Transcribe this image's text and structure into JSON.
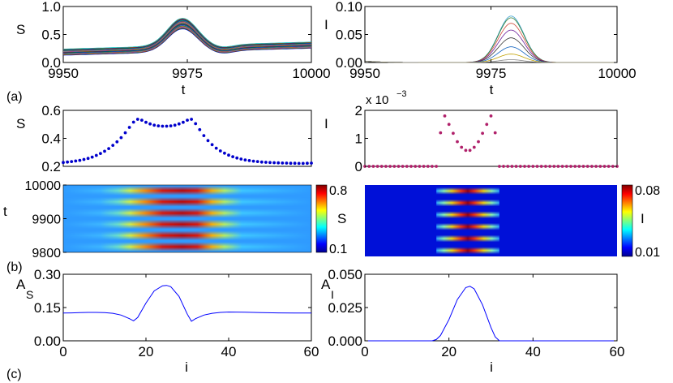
{
  "chart_data": [
    {
      "panel": "(a)",
      "type": "line",
      "ylabel": "S",
      "xlabel": "t",
      "xlim": [
        9950,
        10000
      ],
      "ylim": [
        0,
        1
      ],
      "xticks": [
        9950,
        9975,
        10000
      ],
      "yticks": [
        0.0,
        0.5,
        1.0
      ],
      "ytick_labels": [
        "0.0",
        "0.5",
        "1.0"
      ],
      "series_count": 22,
      "series_levels_at_9950": [
        0.13,
        0.24
      ],
      "peak_x": 9974,
      "peak_values": [
        0.79,
        0.6
      ]
    },
    {
      "type": "line",
      "ylabel": "I",
      "xlabel": "t",
      "xlim": [
        9950,
        10000
      ],
      "ylim": [
        0,
        0.1
      ],
      "xticks": [
        9950,
        9975,
        10000
      ],
      "yticks": [
        0.0,
        0.05,
        0.1
      ],
      "ytick_labels": [
        "0.00",
        "0.05",
        "0.10"
      ],
      "series": [
        {
          "color": "#3aa0d0",
          "peak": 0.083
        },
        {
          "color": "#2e7d32",
          "peak": 0.08
        },
        {
          "color": "#d04a3a",
          "peak": 0.07
        },
        {
          "color": "#6a1b9a",
          "peak": 0.058
        },
        {
          "color": "#333333",
          "peak": 0.044
        },
        {
          "color": "#1565c0",
          "peak": 0.028
        },
        {
          "color": "#c0a000",
          "peak": 0.015
        },
        {
          "color": "#888888",
          "peak": 0.005
        }
      ],
      "peak_x": 9979
    },
    {
      "type": "scatter",
      "ylabel": "S",
      "xlim": [
        0,
        60
      ],
      "ylim": [
        0.2,
        0.6
      ],
      "yticks": [
        0.2,
        0.4,
        0.6
      ],
      "ytick_labels": [
        "0.2",
        "0.4",
        "0.6"
      ],
      "x": [
        0,
        1,
        2,
        3,
        4,
        5,
        6,
        7,
        8,
        9,
        10,
        11,
        12,
        13,
        14,
        15,
        16,
        17,
        18,
        19,
        20,
        21,
        22,
        23,
        24,
        25,
        26,
        27,
        28,
        29,
        30,
        31,
        32,
        33,
        34,
        35,
        36,
        37,
        38,
        39,
        40,
        41,
        42,
        43,
        44,
        45,
        46,
        47,
        48,
        49,
        50,
        51,
        52,
        53,
        54,
        55,
        56,
        57,
        58,
        59,
        60
      ],
      "y": [
        0.228,
        0.231,
        0.234,
        0.238,
        0.243,
        0.249,
        0.257,
        0.266,
        0.278,
        0.292,
        0.308,
        0.327,
        0.35,
        0.375,
        0.405,
        0.44,
        0.478,
        0.516,
        0.536,
        0.53,
        0.515,
        0.503,
        0.494,
        0.489,
        0.487,
        0.487,
        0.489,
        0.494,
        0.503,
        0.515,
        0.53,
        0.536,
        0.505,
        0.462,
        0.42,
        0.384,
        0.355,
        0.33,
        0.31,
        0.294,
        0.28,
        0.269,
        0.26,
        0.252,
        0.246,
        0.241,
        0.237,
        0.234,
        0.231,
        0.229,
        0.227,
        0.226,
        0.225,
        0.224,
        0.223,
        0.222,
        0.222,
        0.221,
        0.221,
        0.222,
        0.223
      ],
      "color": "#0000cc"
    },
    {
      "type": "scatter",
      "ylabel": "I",
      "xlim": [
        0,
        60
      ],
      "ylim": [
        0,
        2
      ],
      "yticks": [
        0,
        1,
        2
      ],
      "ytick_labels": [
        "0",
        "1",
        "2"
      ],
      "exponent": "x 10",
      "exponent_power": "−3",
      "x": [
        0,
        1,
        2,
        3,
        4,
        5,
        6,
        7,
        8,
        9,
        10,
        11,
        12,
        13,
        14,
        15,
        16,
        17,
        18,
        19,
        20,
        21,
        22,
        23,
        24,
        25,
        26,
        27,
        28,
        29,
        30,
        31,
        32,
        33,
        34,
        35,
        36,
        37,
        38,
        39,
        40,
        41,
        42,
        43,
        44,
        45,
        46,
        47,
        48,
        49,
        50,
        51,
        52,
        53,
        54,
        55,
        56,
        57,
        58,
        59,
        60
      ],
      "y": [
        0,
        0,
        0,
        0,
        0,
        0,
        0,
        0,
        0,
        0,
        0,
        0,
        0,
        0,
        0,
        0,
        0,
        0,
        1.2,
        1.8,
        1.5,
        1.18,
        0.88,
        0.68,
        0.57,
        0.57,
        0.68,
        0.88,
        1.18,
        1.5,
        1.8,
        1.2,
        0,
        0,
        0,
        0,
        0,
        0,
        0,
        0,
        0,
        0,
        0,
        0,
        0,
        0,
        0,
        0,
        0,
        0,
        0,
        0,
        0,
        0,
        0,
        0,
        0,
        0,
        0,
        0,
        0
      ],
      "color": "#b0206a"
    },
    {
      "panel": "(b)",
      "type": "heatmap",
      "ylabel": "t",
      "yticks": [
        9800,
        9900,
        10000
      ],
      "ylim": [
        9800,
        10000
      ],
      "xlim": [
        0,
        60
      ],
      "colorbar_label": "S",
      "colorbar_ticks": [
        "0.8",
        "0.1"
      ],
      "colorbar_range": [
        0.1,
        0.8
      ],
      "bands_count": 6
    },
    {
      "type": "heatmap",
      "ylabel": "",
      "xlim": [
        0,
        60
      ],
      "colorbar_label": "I",
      "colorbar_ticks": [
        "0.08",
        "0.01"
      ],
      "colorbar_range": [
        0.01,
        0.08
      ],
      "bands_count": 6
    },
    {
      "panel": "(c)",
      "type": "line",
      "ylabel": "A",
      "ylabel_sub": "S",
      "xlabel": "i",
      "xlim": [
        0,
        60
      ],
      "ylim": [
        0,
        0.3
      ],
      "xticks": [
        0,
        20,
        40,
        60
      ],
      "yticks": [
        0,
        0.15,
        0.3
      ],
      "ytick_labels": [
        "0.00",
        "0.15",
        "0.30"
      ],
      "x": [
        0,
        2,
        4,
        6,
        8,
        10,
        12,
        14,
        16,
        17,
        18,
        20,
        22,
        24,
        25,
        26,
        28,
        30,
        31,
        32,
        34,
        36,
        38,
        40,
        44,
        48,
        52,
        56,
        60
      ],
      "y": [
        0.125,
        0.126,
        0.127,
        0.128,
        0.128,
        0.127,
        0.124,
        0.116,
        0.1,
        0.09,
        0.105,
        0.17,
        0.225,
        0.248,
        0.25,
        0.244,
        0.2,
        0.12,
        0.088,
        0.1,
        0.116,
        0.124,
        0.128,
        0.13,
        0.129,
        0.127,
        0.126,
        0.125,
        0.125
      ],
      "color": "#0000ff"
    },
    {
      "type": "line",
      "ylabel": "A",
      "ylabel_sub": "I",
      "xlabel": "i",
      "xlim": [
        0,
        60
      ],
      "ylim": [
        0,
        0.05
      ],
      "xticks": [
        0,
        20,
        40,
        60
      ],
      "yticks": [
        0,
        0.025,
        0.05
      ],
      "ytick_labels": [
        "0.000",
        "0.025",
        "0.050"
      ],
      "x": [
        0,
        10,
        16,
        17,
        18,
        20,
        22,
        24,
        25,
        26,
        28,
        30,
        31,
        32,
        34,
        40,
        50,
        60
      ],
      "y": [
        0,
        0,
        0,
        0.001,
        0.004,
        0.016,
        0.031,
        0.04,
        0.041,
        0.039,
        0.027,
        0.01,
        0.003,
        0,
        0,
        0,
        0,
        0
      ],
      "color": "#0000ff"
    }
  ]
}
